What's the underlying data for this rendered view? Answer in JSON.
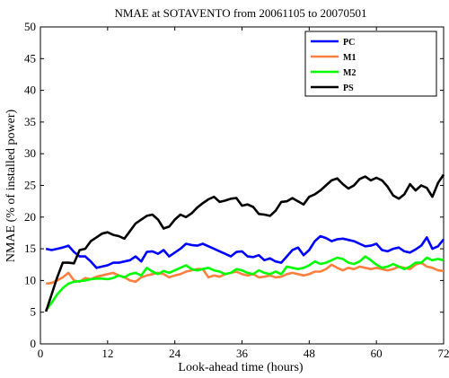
{
  "chart_data": {
    "type": "line",
    "title": "NMAE at SOTAVENTO from 20061105 to 20070501",
    "xlabel": "Look-ahead time (hours)",
    "ylabel": "NMAE (% of installed power)",
    "xlim": [
      0,
      72
    ],
    "ylim": [
      0,
      50
    ],
    "xticks": [
      0,
      12,
      24,
      36,
      48,
      60,
      72
    ],
    "yticks": [
      0,
      5,
      10,
      15,
      20,
      25,
      30,
      35,
      40,
      45,
      50
    ],
    "grid": false,
    "legend_position": "top-right",
    "x": [
      1,
      2,
      3,
      4,
      5,
      6,
      7,
      8,
      9,
      10,
      11,
      12,
      13,
      14,
      15,
      16,
      17,
      18,
      19,
      20,
      21,
      22,
      23,
      24,
      25,
      26,
      27,
      28,
      29,
      30,
      31,
      32,
      33,
      34,
      35,
      36,
      37,
      38,
      39,
      40,
      41,
      42,
      43,
      44,
      45,
      46,
      47,
      48,
      49,
      50,
      51,
      52,
      53,
      54,
      55,
      56,
      57,
      58,
      59,
      60,
      61,
      62,
      63,
      64,
      65,
      66,
      67,
      68,
      69,
      70,
      71,
      72
    ],
    "series": [
      {
        "name": "PC",
        "color": "#0000ff",
        "values": [
          15.0,
          14.8,
          15.0,
          15.2,
          15.5,
          14.5,
          13.8,
          13.8,
          13.0,
          12.0,
          12.2,
          12.4,
          12.8,
          12.8,
          13.0,
          13.2,
          13.8,
          13.0,
          14.5,
          14.6,
          14.2,
          14.8,
          13.8,
          14.4,
          15.0,
          15.8,
          15.6,
          15.5,
          15.8,
          15.4,
          15.0,
          14.6,
          14.2,
          13.8,
          14.5,
          14.6,
          13.8,
          13.7,
          14.0,
          13.2,
          13.5,
          13.0,
          12.8,
          13.8,
          14.8,
          15.2,
          14.0,
          14.8,
          16.2,
          17.0,
          16.7,
          16.2,
          16.5,
          16.6,
          16.4,
          16.2,
          15.8,
          15.4,
          15.5,
          15.8,
          14.8,
          14.6,
          15.0,
          15.2,
          14.6,
          14.4,
          14.9,
          15.5,
          16.8,
          15.0,
          15.4,
          16.5
        ]
      },
      {
        "name": "M1",
        "color": "#ff7f3f",
        "values": [
          9.5,
          9.6,
          10.0,
          10.5,
          11.2,
          10.0,
          9.8,
          10.4,
          10.2,
          10.6,
          10.8,
          11.0,
          11.2,
          10.8,
          10.5,
          10.0,
          9.8,
          10.5,
          10.8,
          11.0,
          11.2,
          11.0,
          10.5,
          10.8,
          11.0,
          11.4,
          11.6,
          11.8,
          11.8,
          10.5,
          10.8,
          10.6,
          11.0,
          11.2,
          11.4,
          11.0,
          10.8,
          11.0,
          10.5,
          10.6,
          10.8,
          10.5,
          10.6,
          11.0,
          11.2,
          11.0,
          10.8,
          11.0,
          11.4,
          11.4,
          11.8,
          12.5,
          12.0,
          11.6,
          12.0,
          11.8,
          12.2,
          12.0,
          11.8,
          12.0,
          11.8,
          11.6,
          11.8,
          12.2,
          12.0,
          11.8,
          12.5,
          12.8,
          12.2,
          12.0,
          11.6,
          11.5
        ]
      },
      {
        "name": "M2",
        "color": "#00ff00",
        "values": [
          5.3,
          6.5,
          7.8,
          8.8,
          9.5,
          9.8,
          9.9,
          10.0,
          10.2,
          10.3,
          10.3,
          10.2,
          10.4,
          10.8,
          10.5,
          11.0,
          11.2,
          10.8,
          12.0,
          11.4,
          11.0,
          11.5,
          11.2,
          11.6,
          12.0,
          12.4,
          11.8,
          11.6,
          11.8,
          12.0,
          11.6,
          11.4,
          11.0,
          11.2,
          11.8,
          11.6,
          11.2,
          11.0,
          11.6,
          11.2,
          11.0,
          11.4,
          11.0,
          12.2,
          12.0,
          11.8,
          12.0,
          12.4,
          13.0,
          12.6,
          12.8,
          13.2,
          13.6,
          13.4,
          12.8,
          12.6,
          13.0,
          13.8,
          13.2,
          12.5,
          12.0,
          12.2,
          12.6,
          12.2,
          11.8,
          12.2,
          12.8,
          12.8,
          13.6,
          13.2,
          13.4,
          13.2
        ]
      },
      {
        "name": "PS",
        "color": "#000000",
        "values": [
          5.1,
          7.8,
          10.5,
          12.8,
          12.8,
          12.7,
          14.8,
          15.0,
          16.2,
          16.8,
          17.4,
          17.6,
          17.2,
          17.0,
          16.6,
          17.8,
          19.0,
          19.6,
          20.2,
          20.4,
          19.6,
          18.2,
          18.5,
          19.6,
          20.4,
          20.0,
          20.6,
          21.5,
          22.2,
          22.8,
          23.2,
          22.4,
          22.6,
          22.9,
          23.0,
          21.8,
          22.0,
          21.6,
          20.5,
          20.4,
          20.2,
          21.0,
          22.4,
          22.5,
          23.0,
          22.5,
          22.0,
          23.2,
          23.6,
          24.2,
          25.0,
          25.8,
          26.1,
          25.2,
          24.5,
          25.0,
          26.0,
          26.4,
          25.8,
          26.2,
          25.8,
          24.8,
          23.4,
          22.9,
          23.6,
          25.2,
          24.2,
          25.0,
          24.6,
          23.2,
          25.4,
          26.7
        ]
      }
    ]
  }
}
